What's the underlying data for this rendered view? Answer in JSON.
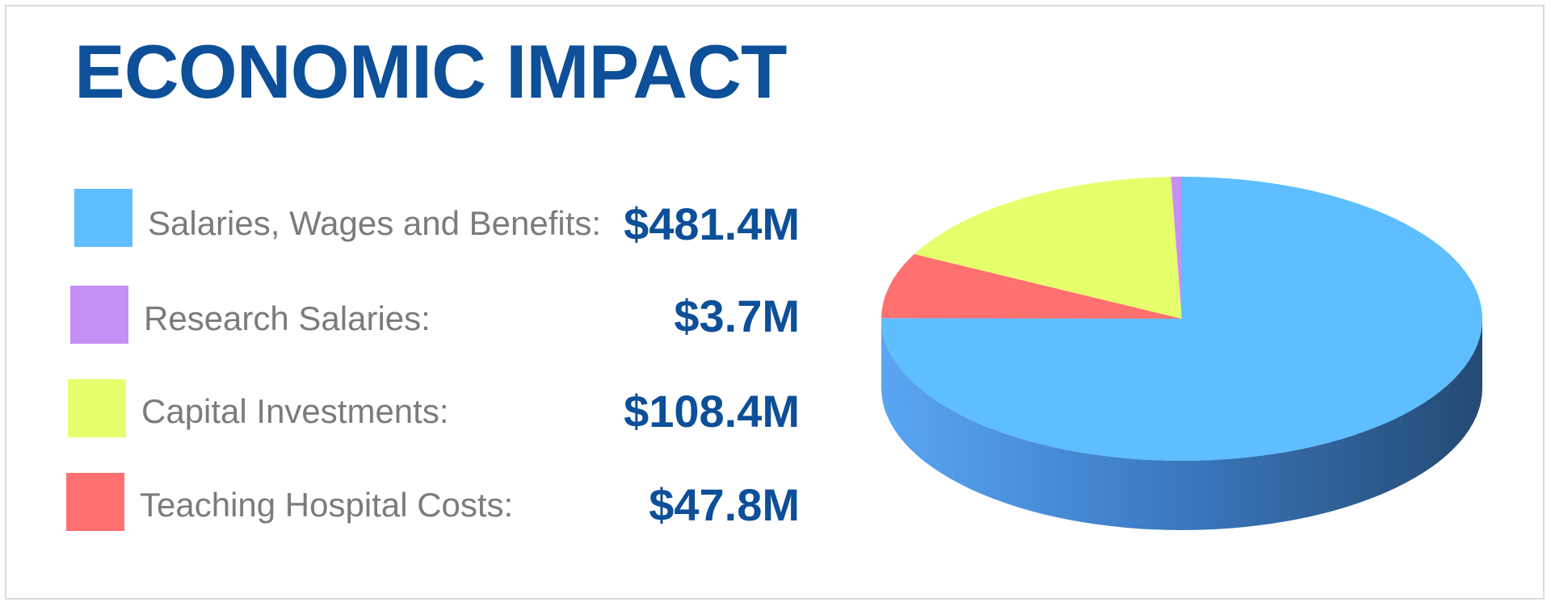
{
  "title": "ECONOMIC IMPACT",
  "legend": [
    {
      "label": "Salaries, Wages and Benefits:",
      "value": "$481.4M",
      "color": "#5ebeff"
    },
    {
      "label": "Research Salaries:",
      "value": "$3.7M",
      "color": "#c58ff5"
    },
    {
      "label": "Capital Investments:",
      "value": "$108.4M",
      "color": "#e6ff6d"
    },
    {
      "label": "Teaching Hospital Costs:",
      "value": "$47.8M",
      "color": "#ff7070"
    }
  ],
  "chart_data": {
    "type": "pie",
    "title": "ECONOMIC IMPACT",
    "categories": [
      "Salaries, Wages and Benefits",
      "Research Salaries",
      "Capital Investments",
      "Teaching Hospital Costs"
    ],
    "values": [
      481.4,
      3.7,
      108.4,
      47.8
    ],
    "unit": "$M",
    "colors": [
      "#5ebeff",
      "#c58ff5",
      "#e6ff6d",
      "#ff7070"
    ],
    "style": "3d"
  }
}
